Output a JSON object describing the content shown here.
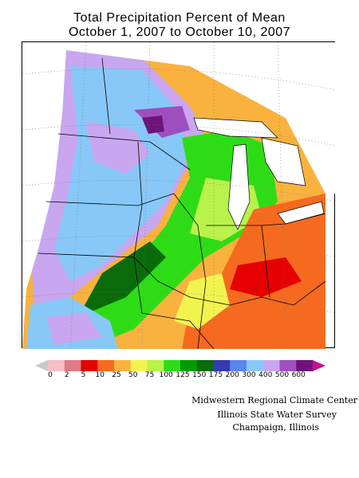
{
  "title": {
    "line1": "Total Precipitation Percent of Mean",
    "line2": "October 1, 2007 to October 10, 2007"
  },
  "legend": {
    "ticks": [
      "0",
      "2",
      "5",
      "10",
      "25",
      "50",
      "75",
      "100",
      "125",
      "150",
      "175",
      "200",
      "300",
      "400",
      "500",
      "600"
    ],
    "colors": [
      "#c8c8c8",
      "#f5c0c8",
      "#e07a85",
      "#e60000",
      "#f56a1f",
      "#f9b23e",
      "#f3f34f",
      "#b8f24a",
      "#2edc16",
      "#009c00",
      "#0a6b0a",
      "#3838b0",
      "#5b85f0",
      "#88c8f8",
      "#c9a6f0",
      "#9f4ec0",
      "#6e137a",
      "#c80f8e"
    ]
  },
  "credits": {
    "line1": "Midwestern Regional Climate Center",
    "line2": "Illinois State Water Survey",
    "line3": "Champaign, Illinois"
  }
}
